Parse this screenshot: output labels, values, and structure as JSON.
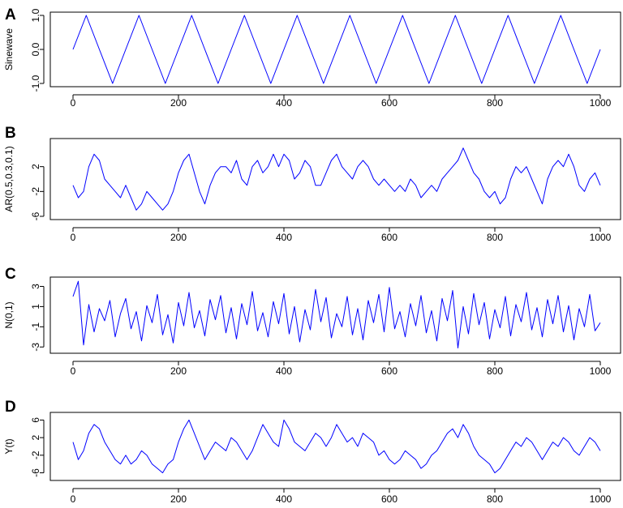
{
  "chart_data": [
    {
      "type": "line",
      "panel": "A",
      "ylabel": "Sinewave",
      "xlim": [
        0,
        1000
      ],
      "ylim": [
        -1.0,
        1.0
      ],
      "xticks": [
        0,
        200,
        400,
        600,
        800,
        1000
      ],
      "yticks": [
        1.0,
        0.0,
        -1.0
      ],
      "ytick_labels": [
        "1.0",
        "0.0",
        "-1.0"
      ],
      "line_color": "#0000ff",
      "series": [
        {
          "x": [
            0,
            25,
            50,
            75,
            100,
            125,
            150,
            175,
            200,
            225,
            250,
            275,
            300,
            325,
            350,
            375,
            400,
            425,
            450,
            475,
            500,
            525,
            550,
            575,
            600,
            625,
            650,
            675,
            700,
            725,
            750,
            775,
            800,
            825,
            850,
            875,
            900,
            925,
            950,
            975,
            1000
          ],
          "y": [
            0,
            1,
            0,
            -1,
            0,
            1,
            0,
            -1,
            0,
            1,
            0,
            -1,
            0,
            1,
            0,
            -1,
            0,
            1,
            0,
            -1,
            0,
            1,
            0,
            -1,
            0,
            1,
            0,
            -1,
            0,
            1,
            0,
            -1,
            0,
            1,
            0,
            -1,
            0,
            1,
            0,
            -1,
            0
          ]
        }
      ]
    },
    {
      "type": "line",
      "panel": "B",
      "ylabel": "AR(0.5,0.3,0.1)",
      "xlim": [
        0,
        1000
      ],
      "ylim": [
        -6,
        6
      ],
      "xticks": [
        0,
        200,
        400,
        600,
        800,
        1000
      ],
      "yticks": [
        2,
        -2,
        -6
      ],
      "ytick_labels": [
        "2",
        "-2",
        "-6"
      ],
      "line_color": "#0000ff",
      "series": [
        {
          "x": [
            0,
            10,
            20,
            30,
            40,
            50,
            60,
            70,
            80,
            90,
            100,
            110,
            120,
            130,
            140,
            150,
            160,
            170,
            180,
            190,
            200,
            210,
            220,
            230,
            240,
            250,
            260,
            270,
            280,
            290,
            300,
            310,
            320,
            330,
            340,
            350,
            360,
            370,
            380,
            390,
            400,
            410,
            420,
            430,
            440,
            450,
            460,
            470,
            480,
            490,
            500,
            510,
            520,
            530,
            540,
            550,
            560,
            570,
            580,
            590,
            600,
            610,
            620,
            630,
            640,
            650,
            660,
            670,
            680,
            690,
            700,
            710,
            720,
            730,
            740,
            750,
            760,
            770,
            780,
            790,
            800,
            810,
            820,
            830,
            840,
            850,
            860,
            870,
            880,
            890,
            900,
            910,
            920,
            930,
            940,
            950,
            960,
            970,
            980,
            990,
            1000
          ],
          "y": [
            -1,
            -3,
            -2,
            2,
            4,
            3,
            0,
            -1,
            -2,
            -3,
            -1,
            -3,
            -5,
            -4,
            -2,
            -3,
            -4,
            -5,
            -4,
            -2,
            1,
            3,
            4,
            1,
            -2,
            -4,
            -1,
            1,
            2,
            2,
            1,
            3,
            0,
            -1,
            2,
            3,
            1,
            2,
            4,
            2,
            4,
            3,
            0,
            1,
            3,
            2,
            -1,
            -1,
            1,
            3,
            4,
            2,
            1,
            0,
            2,
            3,
            2,
            0,
            -1,
            0,
            -1,
            -2,
            -1,
            -2,
            0,
            -1,
            -3,
            -2,
            -1,
            -2,
            0,
            1,
            2,
            3,
            5,
            3,
            1,
            0,
            -2,
            -3,
            -2,
            -4,
            -3,
            0,
            2,
            1,
            2,
            0,
            -2,
            -4,
            0,
            2,
            3,
            2,
            4,
            2,
            -1,
            -2,
            0,
            1,
            -1
          ]
        }
      ]
    },
    {
      "type": "line",
      "panel": "C",
      "ylabel": "N(0,1)",
      "xlim": [
        0,
        1000
      ],
      "ylim": [
        -3.3,
        3.6
      ],
      "xticks": [
        0,
        200,
        400,
        600,
        800,
        1000
      ],
      "yticks": [
        3,
        1,
        -1,
        -3
      ],
      "ytick_labels": [
        "3",
        "1",
        "-1",
        "-3"
      ],
      "line_color": "#0000ff",
      "series": [
        {
          "x": [
            0,
            10,
            20,
            30,
            40,
            50,
            60,
            70,
            80,
            90,
            100,
            110,
            120,
            130,
            140,
            150,
            160,
            170,
            180,
            190,
            200,
            210,
            220,
            230,
            240,
            250,
            260,
            270,
            280,
            290,
            300,
            310,
            320,
            330,
            340,
            350,
            360,
            370,
            380,
            390,
            400,
            410,
            420,
            430,
            440,
            450,
            460,
            470,
            480,
            490,
            500,
            510,
            520,
            530,
            540,
            550,
            560,
            570,
            580,
            590,
            600,
            610,
            620,
            630,
            640,
            650,
            660,
            670,
            680,
            690,
            700,
            710,
            720,
            730,
            740,
            750,
            760,
            770,
            780,
            790,
            800,
            810,
            820,
            830,
            840,
            850,
            860,
            870,
            880,
            890,
            900,
            910,
            920,
            930,
            940,
            950,
            960,
            970,
            980,
            990,
            1000
          ],
          "y": [
            2.0,
            3.5,
            -2.8,
            1.2,
            -1.5,
            0.8,
            -0.4,
            1.6,
            -2.0,
            0.3,
            1.8,
            -1.2,
            0.5,
            -2.4,
            1.1,
            -0.6,
            2.2,
            -1.8,
            0.2,
            -2.6,
            1.4,
            -0.9,
            2.4,
            -1.1,
            0.6,
            -1.9,
            1.7,
            -0.3,
            2.1,
            -1.6,
            0.9,
            -2.2,
            1.3,
            -0.8,
            2.5,
            -1.4,
            0.4,
            -2.0,
            1.5,
            -0.7,
            2.3,
            -1.7,
            1.0,
            -2.5,
            0.7,
            -1.3,
            2.7,
            -0.5,
            1.9,
            -2.1,
            0.3,
            -1.0,
            2.0,
            -1.8,
            0.8,
            -2.3,
            1.6,
            -0.6,
            2.2,
            -1.5,
            2.9,
            -1.2,
            0.5,
            -2.0,
            1.3,
            -0.9,
            2.1,
            -1.6,
            0.6,
            -2.4,
            1.8,
            -0.4,
            2.6,
            -3.1,
            1.0,
            -1.7,
            2.3,
            -0.8,
            1.4,
            -2.2,
            0.7,
            -1.1,
            2.0,
            -1.9,
            1.2,
            -0.5,
            2.4,
            -1.3,
            0.9,
            -2.0,
            1.7,
            -0.7,
            2.1,
            -1.5,
            1.1,
            -2.3,
            0.8,
            -1.0,
            2.2,
            -1.4,
            -0.6
          ]
        }
      ]
    },
    {
      "type": "line",
      "panel": "D",
      "ylabel": "Y(t)",
      "xlim": [
        0,
        1000
      ],
      "ylim": [
        -7,
        7
      ],
      "xticks": [
        0,
        200,
        400,
        600,
        800,
        1000
      ],
      "yticks": [
        6,
        2,
        -2,
        -6
      ],
      "ytick_labels": [
        "6",
        "2",
        "-2",
        "-6"
      ],
      "line_color": "#0000ff",
      "series": [
        {
          "x": [
            0,
            10,
            20,
            30,
            40,
            50,
            60,
            70,
            80,
            90,
            100,
            110,
            120,
            130,
            140,
            150,
            160,
            170,
            180,
            190,
            200,
            210,
            220,
            230,
            240,
            250,
            260,
            270,
            280,
            290,
            300,
            310,
            320,
            330,
            340,
            350,
            360,
            370,
            380,
            390,
            400,
            410,
            420,
            430,
            440,
            450,
            460,
            470,
            480,
            490,
            500,
            510,
            520,
            530,
            540,
            550,
            560,
            570,
            580,
            590,
            600,
            610,
            620,
            630,
            640,
            650,
            660,
            670,
            680,
            690,
            700,
            710,
            720,
            730,
            740,
            750,
            760,
            770,
            780,
            790,
            800,
            810,
            820,
            830,
            840,
            850,
            860,
            870,
            880,
            890,
            900,
            910,
            920,
            930,
            940,
            950,
            960,
            970,
            980,
            990,
            1000
          ],
          "y": [
            1,
            -3,
            -1,
            3,
            5,
            4,
            1,
            -1,
            -3,
            -4,
            -2,
            -4,
            -3,
            -1,
            -2,
            -4,
            -5,
            -6,
            -4,
            -3,
            1,
            4,
            6,
            3,
            0,
            -3,
            -1,
            1,
            0,
            -1,
            2,
            1,
            -1,
            -3,
            -1,
            2,
            5,
            3,
            1,
            0,
            6,
            4,
            1,
            0,
            -1,
            1,
            3,
            2,
            0,
            2,
            5,
            3,
            1,
            2,
            0,
            3,
            2,
            1,
            -2,
            -1,
            -3,
            -4,
            -3,
            -1,
            -2,
            -3,
            -5,
            -4,
            -2,
            -1,
            1,
            3,
            4,
            2,
            5,
            3,
            0,
            -2,
            -3,
            -4,
            -6,
            -5,
            -3,
            -1,
            1,
            0,
            2,
            1,
            -1,
            -3,
            -1,
            1,
            0,
            2,
            1,
            -1,
            -2,
            0,
            2,
            1,
            -1
          ]
        }
      ]
    }
  ]
}
